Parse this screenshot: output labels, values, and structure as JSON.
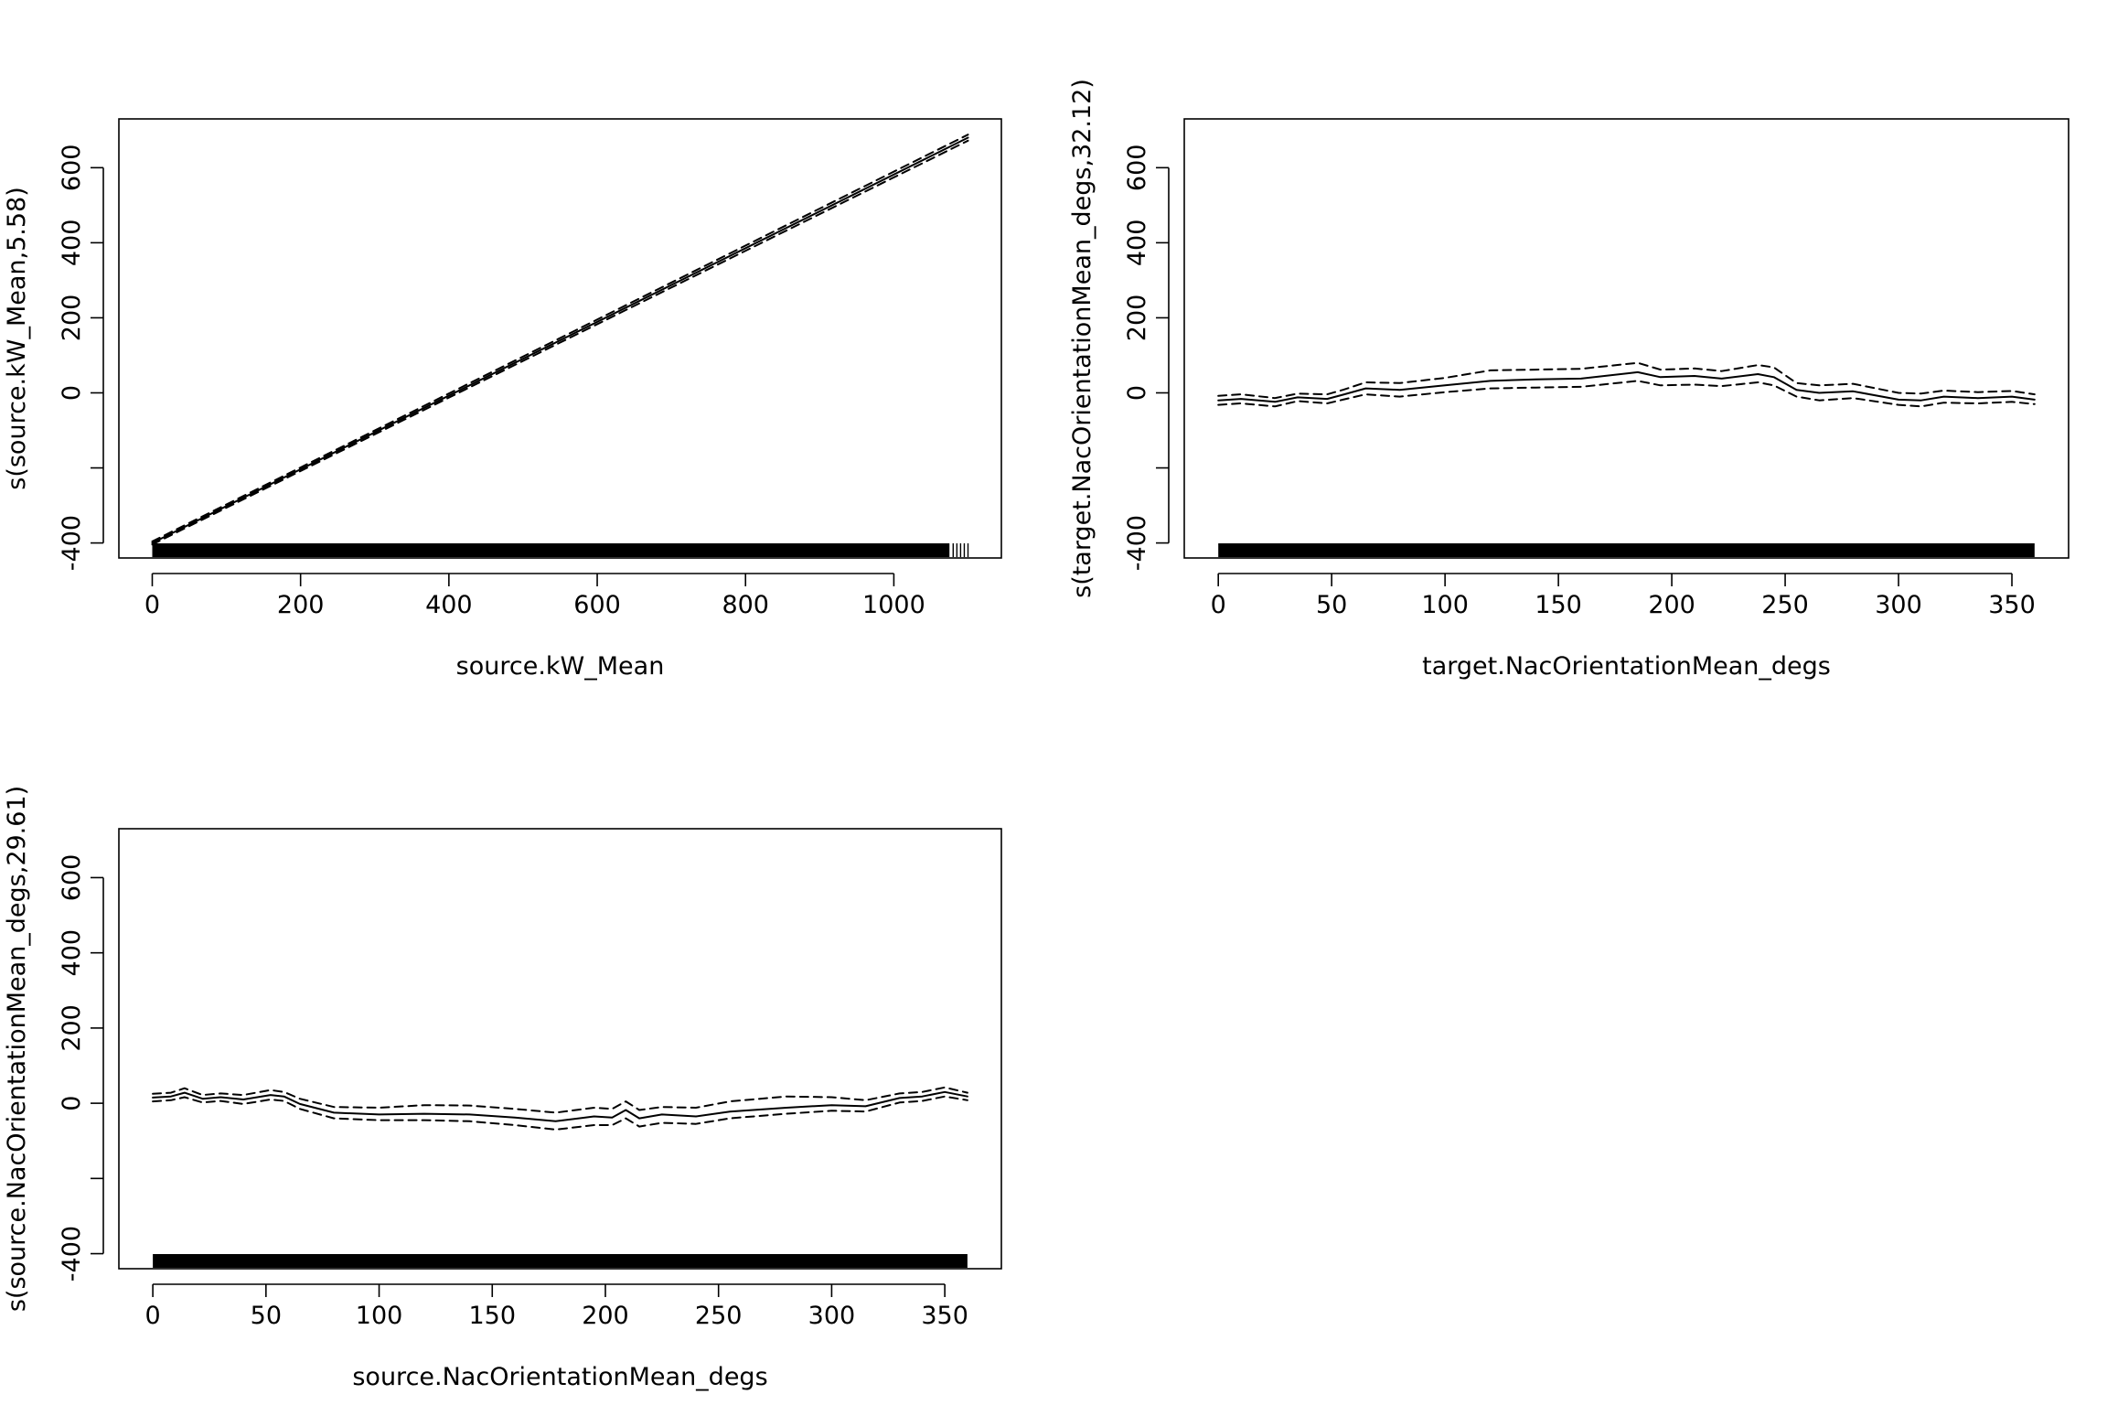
{
  "chart_data": [
    {
      "type": "line",
      "xlabel": "source.kW_Mean",
      "ylabel": "s(source.kW_Mean,5.58)",
      "xlim": [
        -45,
        1145
      ],
      "ylim": [
        -440,
        730
      ],
      "xticks": [
        0,
        200,
        400,
        600,
        800,
        1000
      ],
      "yticks": [
        -400,
        -200,
        0,
        200,
        400,
        600
      ],
      "ytick_labels": [
        "-400",
        "",
        "0",
        "200",
        "400",
        "600"
      ],
      "grid": false,
      "series": [
        {
          "style": "solid",
          "x": [
            0,
            1100
          ],
          "y": [
            -400,
            680
          ]
        },
        {
          "style": "dashed",
          "x": [
            0,
            1100
          ],
          "y": [
            -396,
            688
          ]
        },
        {
          "style": "dashed",
          "x": [
            0,
            1100
          ],
          "y": [
            -404,
            672
          ]
        }
      ],
      "rug": {
        "from": 0,
        "to": 1075,
        "sparse": [
          1080,
          1085,
          1090,
          1095,
          1100
        ]
      }
    },
    {
      "type": "line",
      "xlabel": "target.NacOrientationMean_degs",
      "ylabel": "s(target.NacOrientationMean_degs,32.12)",
      "xlim": [
        -15,
        375
      ],
      "ylim": [
        -440,
        730
      ],
      "xticks": [
        0,
        50,
        100,
        150,
        200,
        250,
        300,
        350
      ],
      "yticks": [
        -400,
        -200,
        0,
        200,
        400,
        600
      ],
      "ytick_labels": [
        "-400",
        "",
        "0",
        "200",
        "400",
        "600"
      ],
      "grid": false,
      "series": [
        {
          "style": "solid",
          "x": [
            0,
            10,
            25,
            35,
            48,
            55,
            65,
            80,
            100,
            120,
            140,
            160,
            185,
            195,
            210,
            222,
            238,
            245,
            255,
            265,
            280,
            300,
            310,
            320,
            335,
            350,
            360
          ],
          "y": [
            -20,
            -16,
            -24,
            -12,
            -16,
            -5,
            12,
            8,
            20,
            32,
            36,
            38,
            55,
            42,
            45,
            38,
            50,
            42,
            8,
            0,
            4,
            -18,
            -20,
            -10,
            -14,
            -10,
            -18
          ]
        },
        {
          "style": "dashed",
          "x": [
            0,
            10,
            25,
            35,
            48,
            55,
            65,
            80,
            100,
            120,
            140,
            160,
            185,
            195,
            210,
            222,
            238,
            245,
            255,
            265,
            280,
            300,
            310,
            320,
            335,
            350,
            360
          ],
          "y": [
            -8,
            -4,
            -14,
            -2,
            -4,
            8,
            28,
            26,
            40,
            60,
            62,
            64,
            80,
            62,
            65,
            58,
            74,
            68,
            26,
            20,
            24,
            0,
            -2,
            6,
            2,
            5,
            -4
          ]
        },
        {
          "style": "dashed",
          "x": [
            0,
            10,
            25,
            35,
            48,
            55,
            65,
            80,
            100,
            120,
            140,
            160,
            185,
            195,
            210,
            222,
            238,
            245,
            255,
            265,
            280,
            300,
            310,
            320,
            335,
            350,
            360
          ],
          "y": [
            -32,
            -28,
            -36,
            -22,
            -28,
            -18,
            -4,
            -10,
            2,
            12,
            14,
            16,
            32,
            20,
            22,
            18,
            28,
            20,
            -10,
            -20,
            -14,
            -32,
            -36,
            -26,
            -28,
            -24,
            -30
          ]
        }
      ],
      "rug": {
        "from": 0,
        "to": 360,
        "sparse": []
      }
    },
    {
      "type": "line",
      "xlabel": "source.NacOrientationMean_degs",
      "ylabel": "s(source.NacOrientationMean_degs,29.61)",
      "xlim": [
        -15,
        375
      ],
      "ylim": [
        -440,
        730
      ],
      "xticks": [
        0,
        50,
        100,
        150,
        200,
        250,
        300,
        350
      ],
      "yticks": [
        -400,
        -200,
        0,
        200,
        400,
        600
      ],
      "ytick_labels": [
        "-400",
        "",
        "0",
        "200",
        "400",
        "600"
      ],
      "grid": false,
      "series": [
        {
          "style": "solid",
          "x": [
            0,
            8,
            14,
            22,
            30,
            40,
            52,
            58,
            65,
            80,
            100,
            120,
            140,
            160,
            178,
            195,
            203,
            209,
            215,
            225,
            240,
            255,
            280,
            300,
            315,
            330,
            340,
            350,
            360
          ],
          "y": [
            15,
            18,
            28,
            12,
            16,
            10,
            22,
            18,
            -2,
            -25,
            -30,
            -28,
            -30,
            -38,
            -48,
            -35,
            -38,
            -18,
            -40,
            -30,
            -35,
            -22,
            -12,
            -5,
            -8,
            14,
            18,
            30,
            18
          ]
        },
        {
          "style": "dashed",
          "x": [
            0,
            8,
            14,
            22,
            30,
            40,
            52,
            58,
            65,
            80,
            100,
            120,
            140,
            160,
            178,
            195,
            203,
            209,
            215,
            225,
            240,
            255,
            280,
            300,
            315,
            330,
            340,
            350,
            360
          ],
          "y": [
            25,
            28,
            40,
            22,
            26,
            22,
            35,
            30,
            12,
            -10,
            -12,
            -5,
            -6,
            -15,
            -25,
            -12,
            -15,
            5,
            -18,
            -10,
            -12,
            5,
            18,
            16,
            8,
            26,
            30,
            42,
            28
          ]
        },
        {
          "style": "dashed",
          "x": [
            0,
            8,
            14,
            22,
            30,
            40,
            52,
            58,
            65,
            80,
            100,
            120,
            140,
            160,
            178,
            195,
            203,
            209,
            215,
            225,
            240,
            255,
            280,
            300,
            315,
            330,
            340,
            350,
            360
          ],
          "y": [
            5,
            8,
            16,
            2,
            6,
            -2,
            10,
            6,
            -15,
            -40,
            -45,
            -45,
            -48,
            -58,
            -70,
            -58,
            -58,
            -40,
            -62,
            -52,
            -55,
            -40,
            -28,
            -20,
            -22,
            2,
            6,
            18,
            8
          ]
        }
      ],
      "rug": {
        "from": 0,
        "to": 360,
        "sparse": []
      }
    }
  ]
}
